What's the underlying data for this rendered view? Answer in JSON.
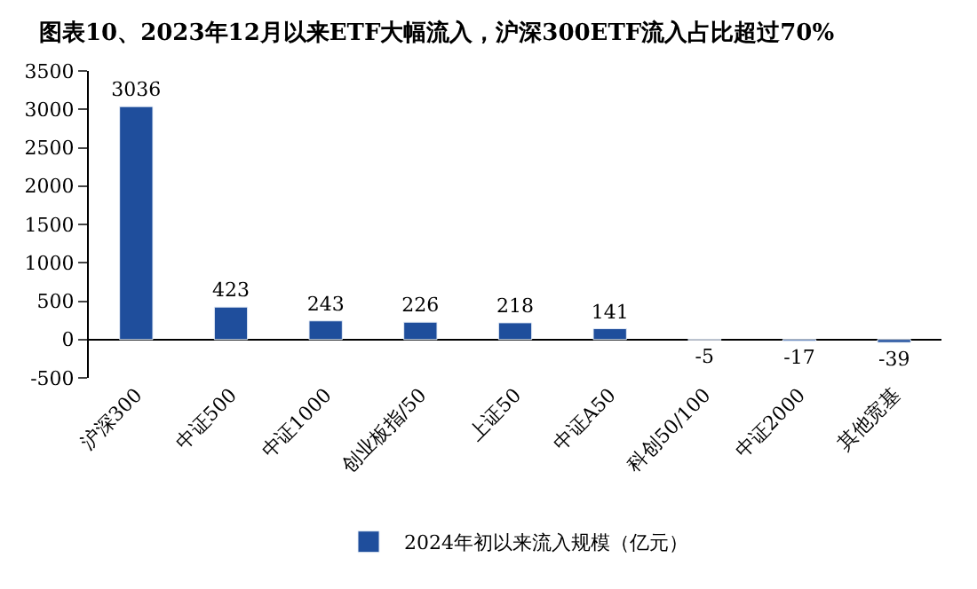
{
  "chart_data": {
    "type": "bar",
    "title": "图表10、2023年12月以来ETF大幅流入，沪深300ETF流入占比超过70%",
    "categories": [
      "沪深300",
      "中证500",
      "中证1000",
      "创业板指/50",
      "上证50",
      "中证A50",
      "科创50/100",
      "中证2000",
      "其他宽基"
    ],
    "series": [
      {
        "name": "2024年初以来流入规模（亿元）",
        "color": "#1f4e9c",
        "values": [
          3036,
          423,
          243,
          226,
          218,
          141,
          -5,
          -17,
          -39
        ]
      }
    ],
    "ylim": [
      -500,
      3500
    ],
    "yticks": [
      -500,
      0,
      500,
      1000,
      1500,
      2000,
      2500,
      3000,
      3500
    ],
    "data_labels": true,
    "legend": "bottom"
  }
}
